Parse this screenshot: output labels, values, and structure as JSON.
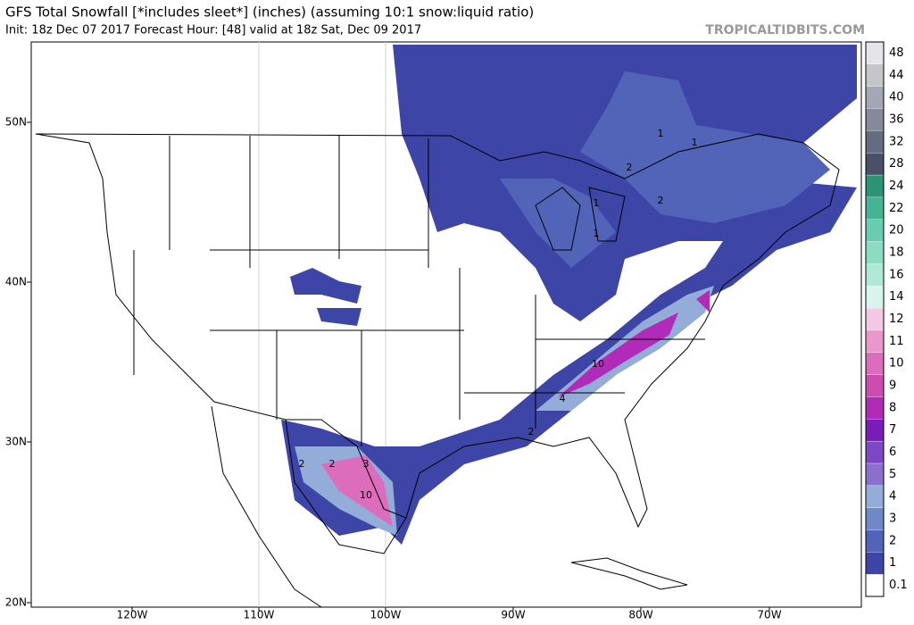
{
  "header": {
    "title": "GFS Total Snowfall [*includes sleet*] (inches) (assuming 10:1 snow:liquid ratio)",
    "subtitle": "Init: 18z Dec 07 2017   Forecast Hour: [48]   valid at 18z Sat, Dec 09 2017",
    "credit": "TROPICALTIDBITS.COM"
  },
  "map": {
    "lat_labels": [
      "50N",
      "40N",
      "30N",
      "20N"
    ],
    "lon_labels": [
      "120W",
      "110W",
      "100W",
      "90W",
      "80W",
      "70W"
    ],
    "contour_labels": [
      "2",
      "2",
      "3",
      "10",
      "4",
      "10",
      "2",
      "1",
      "1",
      "2",
      "2",
      "1",
      "1"
    ]
  },
  "colorbar": {
    "levels": [
      {
        "label": "0.1",
        "color": "#ffffff"
      },
      {
        "label": "1",
        "color": "#3d45a6"
      },
      {
        "label": "2",
        "color": "#5264b8"
      },
      {
        "label": "3",
        "color": "#7088c8"
      },
      {
        "label": "4",
        "color": "#94acd8"
      },
      {
        "label": "5",
        "color": "#8a70cc"
      },
      {
        "label": "6",
        "color": "#7e48c4"
      },
      {
        "label": "7",
        "color": "#7a1cb8"
      },
      {
        "label": "8",
        "color": "#b02cb8"
      },
      {
        "label": "9",
        "color": "#cc4cb0"
      },
      {
        "label": "10",
        "color": "#dc6cbc"
      },
      {
        "label": "11",
        "color": "#e898cc"
      },
      {
        "label": "12",
        "color": "#f4c8e4"
      },
      {
        "label": "14",
        "color": "#d8f4ec"
      },
      {
        "label": "16",
        "color": "#b0e8d8"
      },
      {
        "label": "18",
        "color": "#8cdcc4"
      },
      {
        "label": "20",
        "color": "#68ccb0"
      },
      {
        "label": "22",
        "color": "#44b494"
      },
      {
        "label": "24",
        "color": "#2a9474"
      },
      {
        "label": "28",
        "color": "#4a5068"
      },
      {
        "label": "32",
        "color": "#666c80"
      },
      {
        "label": "36",
        "color": "#848a9a"
      },
      {
        "label": "40",
        "color": "#a4a8b4"
      },
      {
        "label": "44",
        "color": "#c4c6cc"
      },
      {
        "label": "48",
        "color": "#e4e5e8"
      }
    ]
  }
}
